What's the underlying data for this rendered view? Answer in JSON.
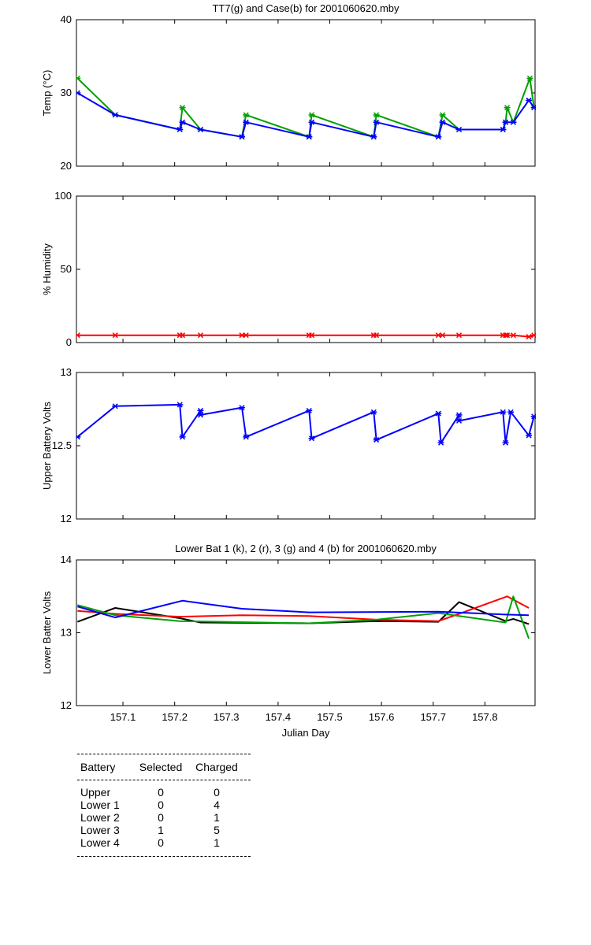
{
  "chart_data": [
    {
      "type": "line",
      "title": "TT7(g) and Case(b) for 2001060620.mby",
      "xlabel": "",
      "ylabel": "Temp  (°C)",
      "xlim": [
        157.01,
        157.897
      ],
      "ylim": [
        20,
        40
      ],
      "yticks": [
        20,
        30,
        40
      ],
      "xticks": [],
      "markers": true,
      "series": [
        {
          "name": "TT7",
          "color": "#00a000",
          "x": [
            157.012,
            157.085,
            157.21,
            157.215,
            157.25,
            157.33,
            157.338,
            157.46,
            157.465,
            157.585,
            157.59,
            157.71,
            157.718,
            157.75,
            157.835,
            157.84,
            157.843,
            157.855,
            157.887,
            157.895
          ],
          "y": [
            32,
            27,
            25,
            28,
            25,
            24,
            27,
            24,
            27,
            24,
            27,
            24,
            27,
            25,
            25,
            26,
            28,
            26,
            32,
            28
          ]
        },
        {
          "name": "Case",
          "color": "#0000ff",
          "x": [
            157.012,
            157.085,
            157.21,
            157.215,
            157.25,
            157.33,
            157.338,
            157.46,
            157.465,
            157.585,
            157.59,
            157.71,
            157.718,
            157.75,
            157.835,
            157.84,
            157.855,
            157.885,
            157.895
          ],
          "y": [
            30,
            27,
            25,
            26,
            25,
            24,
            26,
            24,
            26,
            24,
            26,
            24,
            26,
            25,
            25,
            26,
            26,
            29,
            28
          ]
        }
      ]
    },
    {
      "type": "line",
      "title": "",
      "xlabel": "",
      "ylabel": "% Humidity",
      "xlim": [
        157.01,
        157.897
      ],
      "ylim": [
        0,
        100
      ],
      "yticks": [
        0,
        50,
        100
      ],
      "xticks": [],
      "markers": true,
      "series": [
        {
          "name": "Humidity",
          "color": "#ff0000",
          "x": [
            157.012,
            157.085,
            157.21,
            157.215,
            157.25,
            157.33,
            157.338,
            157.46,
            157.465,
            157.585,
            157.59,
            157.71,
            157.718,
            157.75,
            157.835,
            157.84,
            157.843,
            157.855,
            157.885,
            157.895
          ],
          "y": [
            5,
            5,
            5,
            5,
            5,
            5,
            5,
            5,
            5,
            5,
            5,
            5,
            5,
            5,
            5,
            5,
            5,
            5,
            4,
            5
          ]
        }
      ]
    },
    {
      "type": "line",
      "title": "",
      "xlabel": "",
      "ylabel": "Upper Battery Volts",
      "xlim": [
        157.01,
        157.897
      ],
      "ylim": [
        12,
        13
      ],
      "yticks": [
        12,
        12.5,
        13
      ],
      "xticks": [],
      "markers": true,
      "series": [
        {
          "name": "Upper",
          "color": "#0000ff",
          "x": [
            157.012,
            157.085,
            157.21,
            157.215,
            157.25,
            157.25,
            157.33,
            157.338,
            157.46,
            157.465,
            157.585,
            157.59,
            157.71,
            157.715,
            157.75,
            157.75,
            157.835,
            157.84,
            157.85,
            157.885,
            157.895
          ],
          "y": [
            12.56,
            12.77,
            12.78,
            12.56,
            12.74,
            12.71,
            12.76,
            12.56,
            12.74,
            12.55,
            12.73,
            12.54,
            12.72,
            12.52,
            12.71,
            12.67,
            12.73,
            12.52,
            12.73,
            12.57,
            12.7
          ]
        }
      ]
    },
    {
      "type": "line",
      "title": "Lower Bat 1 (k), 2 (r), 3 (g) and 4 (b) for 2001060620.mby",
      "xlabel": "Julian Day",
      "ylabel": "Lower Batter Volts",
      "xlim": [
        157.01,
        157.897
      ],
      "ylim": [
        12,
        14
      ],
      "yticks": [
        12,
        13,
        14
      ],
      "xticks": [
        157.1,
        157.2,
        157.3,
        157.4,
        157.5,
        157.6,
        157.7,
        157.8
      ],
      "xticklabels": [
        "157.1",
        "157.2",
        "157.3",
        "157.4",
        "157.5",
        "157.6",
        "157.7",
        "157.8"
      ],
      "markers": false,
      "series": [
        {
          "name": "1",
          "color": "#000000",
          "x": [
            157.012,
            157.085,
            157.21,
            157.25,
            157.46,
            157.59,
            157.71,
            157.75,
            157.84,
            157.855,
            157.885
          ],
          "y": [
            13.15,
            13.34,
            13.2,
            13.14,
            13.13,
            13.16,
            13.15,
            13.42,
            13.16,
            13.19,
            13.12
          ]
        },
        {
          "name": "2",
          "color": "#ff0000",
          "x": [
            157.012,
            157.085,
            157.21,
            157.33,
            157.46,
            157.59,
            157.71,
            157.75,
            157.843,
            157.885
          ],
          "y": [
            13.3,
            13.26,
            13.22,
            13.24,
            13.23,
            13.18,
            13.16,
            13.26,
            13.5,
            13.34
          ]
        },
        {
          "name": "3",
          "color": "#00a000",
          "x": [
            157.012,
            157.085,
            157.21,
            157.46,
            157.59,
            157.71,
            157.84,
            157.855,
            157.885
          ],
          "y": [
            13.38,
            13.24,
            13.16,
            13.13,
            13.18,
            13.27,
            13.14,
            13.5,
            12.92
          ]
        },
        {
          "name": "4",
          "color": "#0000ff",
          "x": [
            157.012,
            157.085,
            157.215,
            157.33,
            157.46,
            157.71,
            157.84,
            157.885
          ],
          "y": [
            13.36,
            13.21,
            13.44,
            13.33,
            13.28,
            13.29,
            13.25,
            13.24
          ]
        }
      ]
    }
  ],
  "summary_table": {
    "headers": [
      "Battery",
      "Selected",
      "Charged"
    ],
    "rows": [
      [
        "Upper",
        "0",
        "0"
      ],
      [
        "Lower 1",
        "0",
        "4"
      ],
      [
        "Lower 2",
        "0",
        "1"
      ],
      [
        "Lower 3",
        "1",
        "5"
      ],
      [
        "Lower 4",
        "0",
        "1"
      ]
    ]
  }
}
